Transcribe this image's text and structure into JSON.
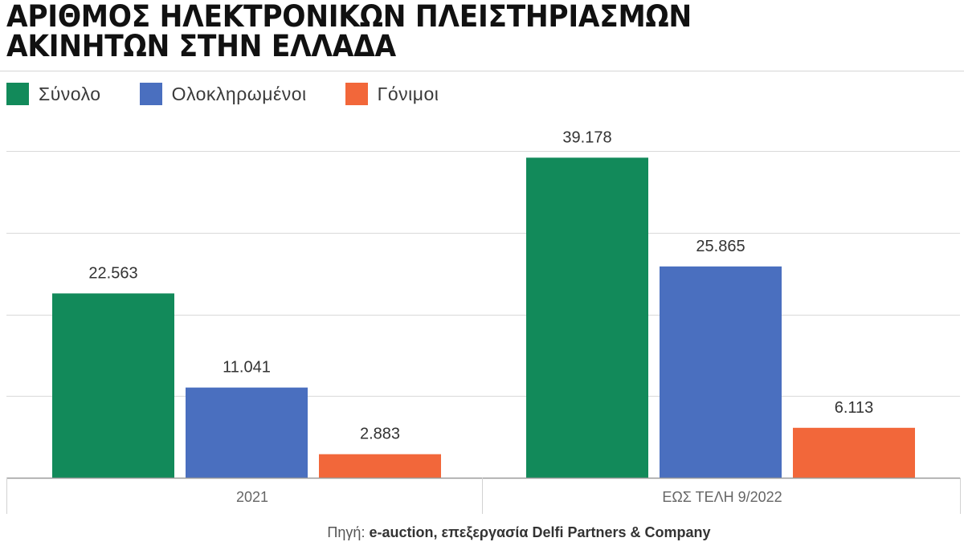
{
  "title": {
    "line1": "ΑΡΙΘΜΟΣ ΗΛΕΚΤΡΟΝΙΚΩΝ ΠΛΕΙΣΤΗΡΙΑΣΜΩΝ",
    "line2": "ΑΚΙΝΗΤΩΝ ΣΤΗΝ ΕΛΛΑΔΑ"
  },
  "colors": {
    "series": [
      "#128a5a",
      "#4a6fbf",
      "#f2673a"
    ]
  },
  "source": {
    "prefix": "Πηγή:",
    "text": "e-auction, επεξεργασία Delfi Partners & Company"
  },
  "chart_data": {
    "type": "bar",
    "title": "ΑΡΙΘΜΟΣ ΗΛΕΚΤΡΟΝΙΚΩΝ ΠΛΕΙΣΤΗΡΙΑΣΜΩΝ ΑΚΙΝΗΤΩΝ ΣΤΗΝ ΕΛΛΑΔΑ",
    "categories": [
      "2021",
      "ΕΩΣ ΤΕΛΗ 9/2022"
    ],
    "series": [
      {
        "name": "Σύνολο",
        "values": [
          22563,
          39178
        ],
        "labels": [
          "22.563",
          "39.178"
        ],
        "color": "#128a5a"
      },
      {
        "name": "Ολοκληρωμένοι",
        "values": [
          11041,
          25865
        ],
        "labels": [
          "11.041",
          "25.865"
        ],
        "color": "#4a6fbf"
      },
      {
        "name": "Γόνιμοι",
        "values": [
          2883,
          6113
        ],
        "labels": [
          "2.883",
          "6.113"
        ],
        "color": "#f2673a"
      }
    ],
    "ylim": [
      0,
      40000
    ],
    "grid": true,
    "legend": "top-left",
    "xlabel": "",
    "ylabel": ""
  }
}
